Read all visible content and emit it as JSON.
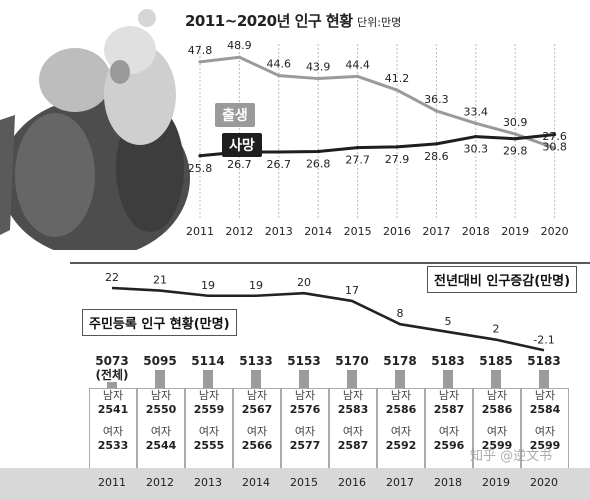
{
  "top_chart": {
    "title": "2011~2020년 인구 현황",
    "unit": "단위:만명"
  },
  "bottom": {
    "title": "주민등록 인구 현황(만명)",
    "male_label": "남자",
    "female_label": "여자",
    "total_label": "(전체)"
  },
  "watermark": "知乎 @逆文书",
  "colors": {
    "births": "#9a9a9a",
    "deaths": "#1e1e1e",
    "change": "#222222",
    "grid": "#bbbbbb"
  },
  "chart_data": [
    {
      "type": "line",
      "title": "2011~2020년 인구 현황",
      "x": [
        "2011",
        "2012",
        "2013",
        "2014",
        "2015",
        "2016",
        "2017",
        "2018",
        "2019",
        "2020"
      ],
      "series": [
        {
          "name": "출생",
          "values": [
            47.8,
            48.9,
            44.6,
            43.9,
            44.4,
            41.2,
            36.3,
            33.4,
            30.9,
            27.6
          ]
        },
        {
          "name": "사망",
          "values": [
            25.8,
            26.7,
            26.7,
            26.8,
            27.7,
            27.9,
            28.6,
            30.3,
            29.8,
            30.8
          ]
        }
      ],
      "ylim": [
        22,
        52
      ],
      "grid": true
    },
    {
      "type": "line",
      "x": [
        "2011",
        "2012",
        "2013",
        "2014",
        "2015",
        "2016",
        "2017",
        "2018",
        "2019",
        "2020"
      ],
      "series": [
        {
          "name": "전년대비 인구증감(만명)",
          "values": [
            22,
            21,
            19,
            19,
            20,
            17,
            8,
            5,
            2,
            -2.1
          ]
        }
      ]
    },
    {
      "type": "table",
      "title": "주민등록 인구 현황(만명)",
      "x": [
        "2011",
        "2012",
        "2013",
        "2014",
        "2015",
        "2016",
        "2017",
        "2018",
        "2019",
        "2020"
      ],
      "series": [
        {
          "name": "전체",
          "values": [
            5073,
            5095,
            5114,
            5133,
            5153,
            5170,
            5178,
            5183,
            5185,
            5183
          ]
        },
        {
          "name": "남자",
          "values": [
            2541,
            2550,
            2559,
            2567,
            2576,
            2583,
            2586,
            2587,
            2586,
            2584
          ]
        },
        {
          "name": "여자",
          "values": [
            2533,
            2544,
            2555,
            2566,
            2577,
            2587,
            2592,
            2596,
            2599,
            2599
          ]
        }
      ]
    }
  ]
}
